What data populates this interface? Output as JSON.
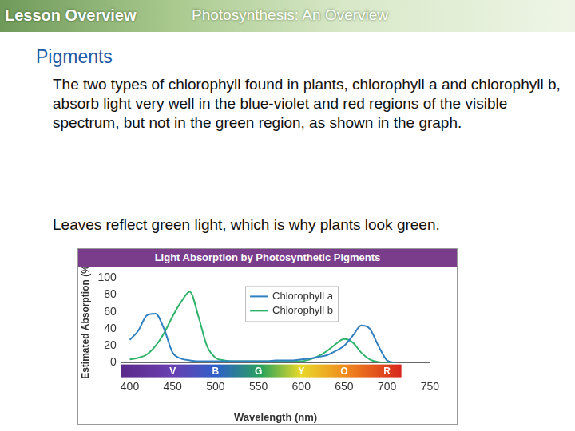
{
  "header": {
    "left": "Lesson Overview",
    "right": "Photosynthesis: An Overview"
  },
  "heading": "Pigments",
  "paragraphs": [
    "The two types of chlorophyll found in plants, chlorophyll a and chlorophyll b, absorb light very well in the blue-violet and red regions of the visible spectrum, but not in the green region, as shown in the graph.",
    "Leaves reflect green light, which is why plants look green."
  ],
  "chart_data": {
    "type": "line",
    "title": "Light Absorption by Photosynthetic Pigments",
    "x_label": "Wavelength (nm)",
    "y_label": "Estimated Absorption (%)",
    "x": [
      400,
      410,
      420,
      430,
      440,
      450,
      460,
      470,
      480,
      490,
      500,
      510,
      520,
      530,
      540,
      550,
      560,
      570,
      580,
      590,
      600,
      610,
      620,
      630,
      640,
      650,
      660,
      670,
      680,
      690,
      700,
      710
    ],
    "series": [
      {
        "name": "Chlorophyll a",
        "color": "#2f7fc1",
        "values": [
          27,
          38,
          56,
          58,
          40,
          12,
          5,
          3,
          2,
          2,
          2,
          2,
          2,
          2,
          2,
          2,
          2,
          3,
          3,
          3,
          4,
          5,
          7,
          9,
          14,
          20,
          32,
          44,
          40,
          20,
          3,
          0
        ]
      },
      {
        "name": "Chlorophyll b",
        "color": "#2fb36b",
        "values": [
          4,
          6,
          10,
          20,
          35,
          55,
          72,
          84,
          55,
          20,
          6,
          3,
          2,
          2,
          2,
          2,
          2,
          2,
          2,
          2,
          2,
          4,
          8,
          14,
          22,
          28,
          24,
          12,
          4,
          1,
          0,
          0
        ]
      }
    ],
    "xlim": [
      390,
      750
    ],
    "xticks": [
      400,
      450,
      500,
      550,
      600,
      650,
      700,
      750
    ],
    "ylim": [
      0,
      100
    ],
    "yticks": [
      0,
      20,
      40,
      60,
      80,
      100
    ],
    "grid": false,
    "legend": "top",
    "annotations": [
      {
        "text": "V",
        "x": 450
      },
      {
        "text": "B",
        "x": 500
      },
      {
        "text": "G",
        "x": 550
      },
      {
        "text": "Y",
        "x": 600
      },
      {
        "text": "O",
        "x": 650
      },
      {
        "text": "R",
        "x": 700
      }
    ]
  }
}
